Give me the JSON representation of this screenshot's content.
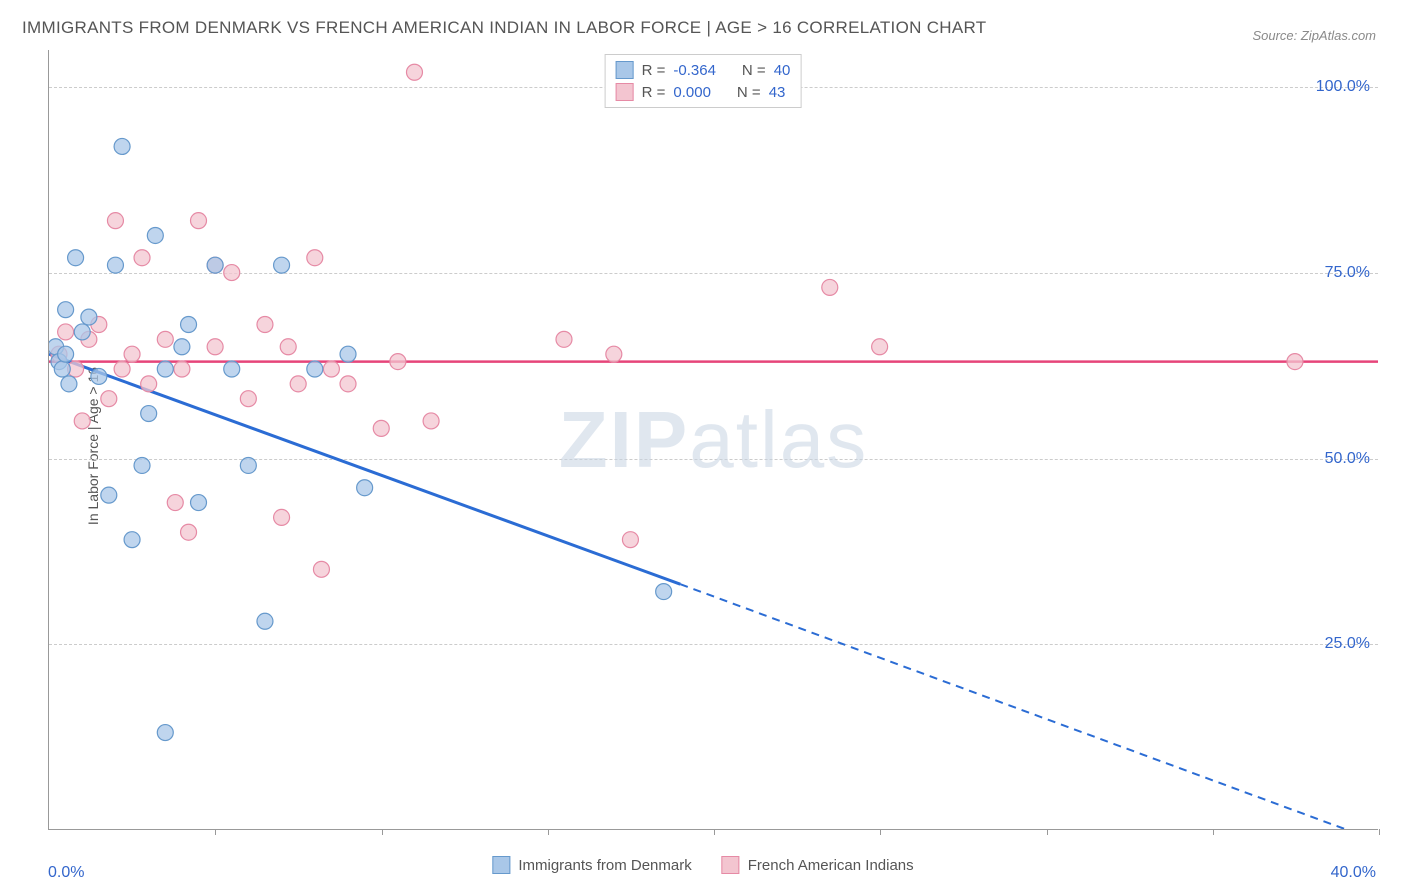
{
  "title": "IMMIGRANTS FROM DENMARK VS FRENCH AMERICAN INDIAN IN LABOR FORCE | AGE > 16 CORRELATION CHART",
  "source": "Source: ZipAtlas.com",
  "ylabel": "In Labor Force | Age > 16",
  "watermark_1": "ZIP",
  "watermark_2": "atlas",
  "chart": {
    "type": "scatter-correlation",
    "xlim": [
      0,
      40
    ],
    "ylim": [
      0,
      105
    ],
    "y_ticks": [
      25,
      50,
      75,
      100
    ],
    "y_tick_labels": [
      "25.0%",
      "50.0%",
      "75.0%",
      "100.0%"
    ],
    "x_ticks": [
      0,
      5,
      10,
      15,
      20,
      25,
      30,
      35,
      40
    ],
    "x_tick_labels_shown": {
      "0": "0.0%",
      "40": "40.0%"
    },
    "background_color": "#ffffff",
    "grid_color": "#cccccc",
    "axis_color": "#999999",
    "series": [
      {
        "name": "Immigrants from Denmark",
        "r": "-0.364",
        "n": "40",
        "marker_fill": "#a9c7e8",
        "marker_stroke": "#6699cc",
        "line_color": "#2b6cd4",
        "trend_solid": {
          "x1": 0,
          "y1": 64,
          "x2": 19,
          "y2": 33
        },
        "trend_dashed": {
          "x1": 19,
          "y1": 33,
          "x2": 39,
          "y2": 0
        },
        "points": [
          [
            0.2,
            65
          ],
          [
            0.3,
            63
          ],
          [
            0.4,
            62
          ],
          [
            0.5,
            64
          ],
          [
            0.5,
            70
          ],
          [
            0.6,
            60
          ],
          [
            0.8,
            77
          ],
          [
            1.0,
            67
          ],
          [
            1.2,
            69
          ],
          [
            1.5,
            61
          ],
          [
            1.8,
            45
          ],
          [
            2.0,
            76
          ],
          [
            2.2,
            92
          ],
          [
            2.5,
            39
          ],
          [
            2.8,
            49
          ],
          [
            3.0,
            56
          ],
          [
            3.2,
            80
          ],
          [
            3.5,
            62
          ],
          [
            3.5,
            13
          ],
          [
            4.0,
            65
          ],
          [
            4.2,
            68
          ],
          [
            4.5,
            44
          ],
          [
            5.0,
            76
          ],
          [
            5.5,
            62
          ],
          [
            6.0,
            49
          ],
          [
            6.5,
            28
          ],
          [
            7.0,
            76
          ],
          [
            8.0,
            62
          ],
          [
            9.0,
            64
          ],
          [
            9.5,
            46
          ],
          [
            18.5,
            32
          ]
        ]
      },
      {
        "name": "French American Indians",
        "r": "0.000",
        "n": "43",
        "marker_fill": "#f3c5d0",
        "marker_stroke": "#e68aa5",
        "line_color": "#e6457a",
        "trend_solid": {
          "x1": 0,
          "y1": 63,
          "x2": 40,
          "y2": 63
        },
        "points": [
          [
            0.3,
            64
          ],
          [
            0.5,
            67
          ],
          [
            0.8,
            62
          ],
          [
            1.0,
            55
          ],
          [
            1.2,
            66
          ],
          [
            1.5,
            68
          ],
          [
            1.8,
            58
          ],
          [
            2.0,
            82
          ],
          [
            2.2,
            62
          ],
          [
            2.5,
            64
          ],
          [
            2.8,
            77
          ],
          [
            3.0,
            60
          ],
          [
            3.5,
            66
          ],
          [
            3.8,
            44
          ],
          [
            4.0,
            62
          ],
          [
            4.2,
            40
          ],
          [
            4.5,
            82
          ],
          [
            5.0,
            65
          ],
          [
            5.0,
            76
          ],
          [
            5.5,
            75
          ],
          [
            6.0,
            58
          ],
          [
            6.5,
            68
          ],
          [
            7.0,
            42
          ],
          [
            7.2,
            65
          ],
          [
            7.5,
            60
          ],
          [
            8.0,
            77
          ],
          [
            8.2,
            35
          ],
          [
            8.5,
            62
          ],
          [
            9.0,
            60
          ],
          [
            10.0,
            54
          ],
          [
            10.5,
            63
          ],
          [
            11.0,
            102
          ],
          [
            11.5,
            55
          ],
          [
            15.5,
            66
          ],
          [
            17.0,
            64
          ],
          [
            17.5,
            39
          ],
          [
            23.5,
            73
          ],
          [
            25.0,
            65
          ],
          [
            37.5,
            63
          ]
        ]
      }
    ],
    "legend_top": [
      {
        "swatch_fill": "#a9c7e8",
        "swatch_stroke": "#6699cc",
        "r_label": "R =",
        "r": "-0.364",
        "n_label": "N =",
        "n": "40"
      },
      {
        "swatch_fill": "#f3c5d0",
        "swatch_stroke": "#e68aa5",
        "r_label": "R =",
        "r": "0.000",
        "n_label": "N =",
        "n": "43"
      }
    ],
    "legend_bottom": [
      {
        "swatch_fill": "#a9c7e8",
        "swatch_stroke": "#6699cc",
        "label": "Immigrants from Denmark"
      },
      {
        "swatch_fill": "#f3c5d0",
        "swatch_stroke": "#e68aa5",
        "label": "French American Indians"
      }
    ]
  }
}
